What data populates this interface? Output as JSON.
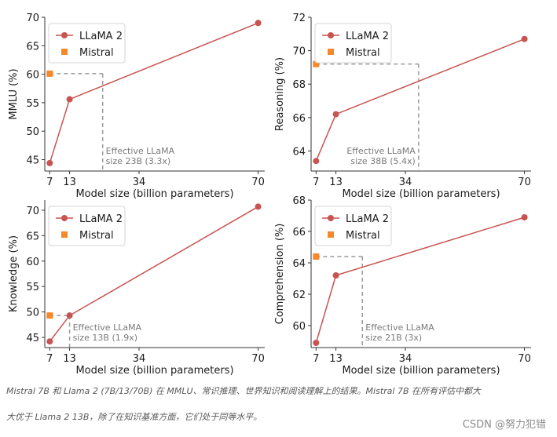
{
  "chart_data": [
    {
      "type": "line",
      "xlabel": "Model size (billion parameters)",
      "ylabel": "MMLU (%)",
      "categories": [
        "7",
        "13",
        "34",
        "70"
      ],
      "xlim": [
        5.5,
        72
      ],
      "ylim": [
        43,
        70
      ],
      "yticks": [
        45,
        50,
        55,
        60,
        65,
        70
      ],
      "series": [
        {
          "name": "LLaMA 2",
          "x": [
            7,
            13,
            70
          ],
          "values": [
            44.4,
            55.6,
            69.0
          ]
        },
        {
          "name": "Mistral",
          "x": [
            7
          ],
          "values": [
            60.1
          ]
        }
      ],
      "reference": {
        "x": 23,
        "y": 60.1
      },
      "annotation": [
        "Effective LLaMA",
        "size 23B (3.3x)"
      ]
    },
    {
      "type": "line",
      "xlabel": "Model size (billion parameters)",
      "ylabel": "Reasoning (%)",
      "categories": [
        "7",
        "13",
        "34",
        "70"
      ],
      "xlim": [
        5.5,
        72
      ],
      "ylim": [
        62.8,
        72
      ],
      "yticks": [
        64,
        66,
        68,
        70,
        72
      ],
      "series": [
        {
          "name": "LLaMA 2",
          "x": [
            7,
            13,
            70
          ],
          "values": [
            63.4,
            66.2,
            70.7
          ]
        },
        {
          "name": "Mistral",
          "x": [
            7
          ],
          "values": [
            69.2
          ]
        }
      ],
      "reference": {
        "x": 38,
        "y": 69.2
      },
      "annotation": [
        "Effective LLaMA",
        "size 38B (5.4x)"
      ]
    },
    {
      "type": "line",
      "xlabel": "Model size (billion parameters)",
      "ylabel": "Knowledge (%)",
      "categories": [
        "7",
        "13",
        "34",
        "70"
      ],
      "xlim": [
        5.5,
        72
      ],
      "ylim": [
        43,
        72
      ],
      "yticks": [
        45,
        50,
        55,
        60,
        65,
        70
      ],
      "series": [
        {
          "name": "LLaMA 2",
          "x": [
            7,
            13,
            70
          ],
          "values": [
            44.2,
            49.3,
            70.7
          ]
        },
        {
          "name": "Mistral",
          "x": [
            7
          ],
          "values": [
            49.3
          ]
        }
      ],
      "reference": {
        "x": 13,
        "y": 49.3
      },
      "annotation": [
        "Effective LLaMA",
        "size 13B (1.9x)"
      ]
    },
    {
      "type": "line",
      "xlabel": "Model size (billion parameters)",
      "ylabel": "Comprehension (%)",
      "categories": [
        "7",
        "13",
        "34",
        "70"
      ],
      "xlim": [
        5.5,
        72
      ],
      "ylim": [
        58.6,
        68
      ],
      "yticks": [
        60,
        62,
        64,
        66,
        68
      ],
      "series": [
        {
          "name": "LLaMA 2",
          "x": [
            7,
            13,
            70
          ],
          "values": [
            58.9,
            63.2,
            66.9
          ]
        },
        {
          "name": "Mistral",
          "x": [
            7
          ],
          "values": [
            64.4
          ]
        }
      ],
      "reference": {
        "x": 21,
        "y": 64.4
      },
      "annotation": [
        "Effective LLaMA",
        "size 21B (3x)"
      ]
    }
  ],
  "colors": {
    "llama": "#c85450",
    "mistral": "#f5882a",
    "reference": "#999999",
    "axis": "#333333",
    "text": "#1a1a1a"
  },
  "caption": {
    "line1": "Mistral 7B 和 Llama 2 (7B/13/70B) 在 MMLU、常识推理、世界知识和阅读理解上的结果。Mistral 7B 在所有评估中都大",
    "line2": "大优于 Llama 2 13B，除了在知识基准方面，它们处于同等水平。"
  },
  "watermark": "CSDN @努力犯错"
}
